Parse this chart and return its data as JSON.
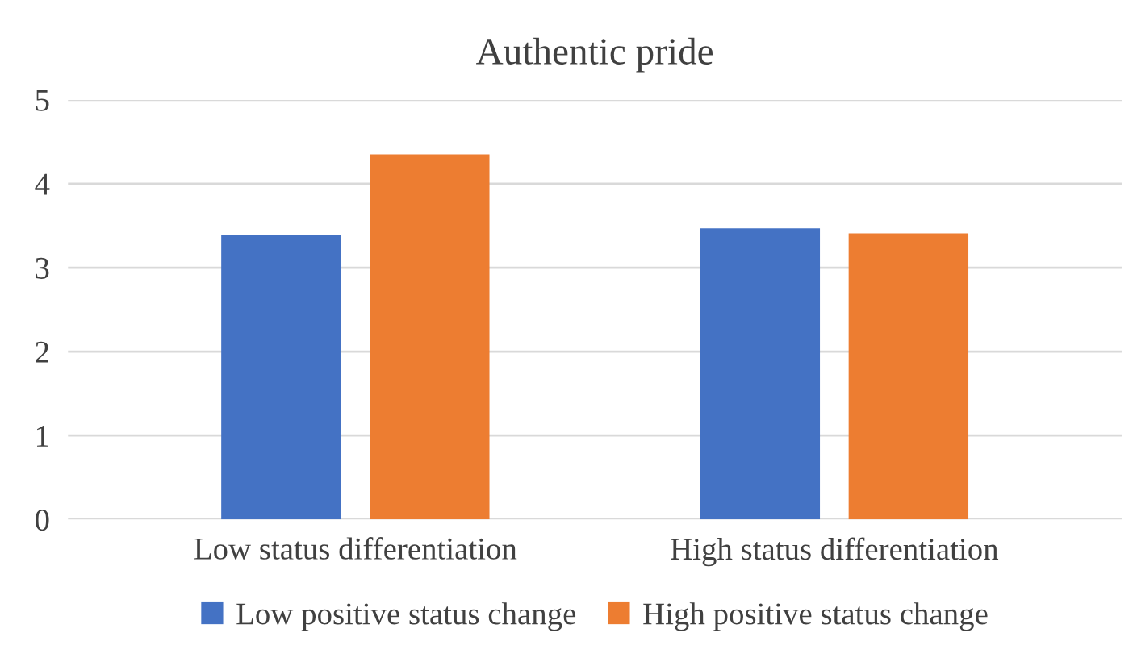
{
  "chart_data": {
    "type": "bar",
    "title": "Authentic pride",
    "categories": [
      "Low status differentiation",
      "High status differentiation"
    ],
    "series": [
      {
        "name": "Low positive status change",
        "color": "#4472c4",
        "values": [
          3.39,
          3.47
        ]
      },
      {
        "name": "High positive status change",
        "color": "#ed7d31",
        "values": [
          4.35,
          3.41
        ]
      }
    ],
    "ylim": [
      0,
      5
    ],
    "yticks": [
      0,
      1,
      2,
      3,
      4,
      5
    ],
    "grid": "y",
    "legend": "bottom"
  }
}
